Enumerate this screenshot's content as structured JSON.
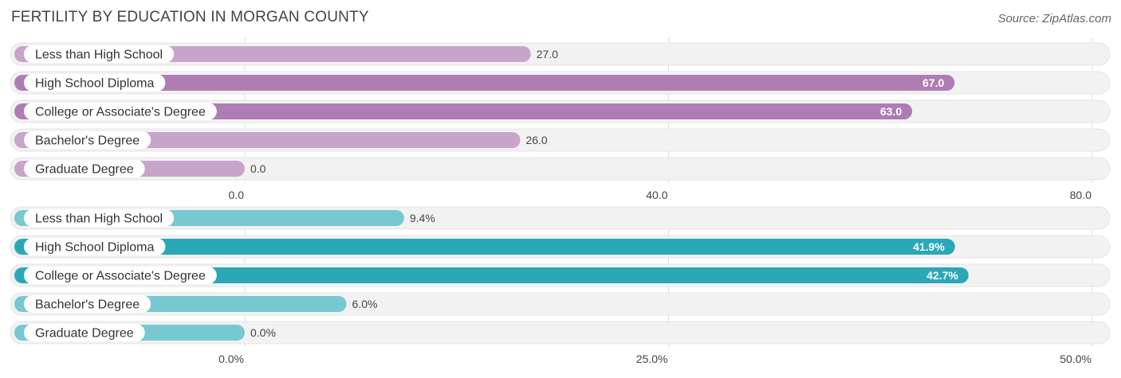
{
  "title": "FERTILITY BY EDUCATION IN MORGAN COUNTY",
  "source": "Source: ZipAtlas.com",
  "chart_data": [
    {
      "type": "bar",
      "orientation": "horizontal",
      "categories": [
        "Less than High School",
        "High School Diploma",
        "College or Associate's Degree",
        "Bachelor's Degree",
        "Graduate Degree"
      ],
      "values": [
        27.0,
        67.0,
        63.0,
        26.0,
        0.0
      ],
      "value_labels": [
        "27.0",
        "67.0",
        "63.0",
        "26.0",
        "0.0"
      ],
      "xlim": [
        0,
        80
      ],
      "ticks": [
        0,
        40,
        80
      ],
      "tick_labels": [
        "0.0",
        "40.0",
        "80.0"
      ],
      "grid": true,
      "colors": {
        "strong": "#ae7db4",
        "light": "#c8a4cb"
      }
    },
    {
      "type": "bar",
      "orientation": "horizontal",
      "categories": [
        "Less than High School",
        "High School Diploma",
        "College or Associate's Degree",
        "Bachelor's Degree",
        "Graduate Degree"
      ],
      "values": [
        9.4,
        41.9,
        42.7,
        6.0,
        0.0
      ],
      "value_labels": [
        "9.4%",
        "41.9%",
        "42.7%",
        "6.0%",
        "0.0%"
      ],
      "xlim": [
        0,
        50
      ],
      "ticks": [
        0,
        25,
        50
      ],
      "tick_labels": [
        "0.0%",
        "25.0%",
        "50.0%"
      ],
      "grid": true,
      "colors": {
        "strong": "#2aa8b8",
        "light": "#78c8d2"
      }
    }
  ]
}
